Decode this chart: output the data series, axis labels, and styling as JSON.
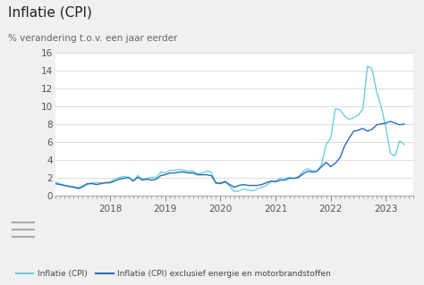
{
  "title": "Inflatie (CPI)",
  "subtitle": "% verandering t.o.v. een jaar eerder",
  "ylim": [
    0,
    16
  ],
  "yticks": [
    0,
    2,
    4,
    6,
    8,
    10,
    12,
    14,
    16
  ],
  "legend_labels": [
    "Inflatie (CPI)",
    "Inflatie (CPI) exclusief energie en motorbrandstoffen"
  ],
  "line1_color": "#6ECFE0",
  "line2_color": "#2B6CB8",
  "background_color": "#f0f0f0",
  "plot_bg": "#ffffff",
  "title_fontsize": 11,
  "subtitle_fontsize": 7.5,
  "tick_fontsize": 7.5,
  "xlim_start": 2017.0,
  "xlim_end": 2023.5,
  "t": [
    2017.0,
    2017.083,
    2017.167,
    2017.25,
    2017.333,
    2017.417,
    2017.5,
    2017.583,
    2017.667,
    2017.75,
    2017.833,
    2017.917,
    2018.0,
    2018.083,
    2018.167,
    2018.25,
    2018.333,
    2018.417,
    2018.5,
    2018.583,
    2018.667,
    2018.75,
    2018.833,
    2018.917,
    2019.0,
    2019.083,
    2019.167,
    2019.25,
    2019.333,
    2019.417,
    2019.5,
    2019.583,
    2019.667,
    2019.75,
    2019.833,
    2019.917,
    2020.0,
    2020.083,
    2020.167,
    2020.25,
    2020.333,
    2020.417,
    2020.5,
    2020.583,
    2020.667,
    2020.75,
    2020.833,
    2020.917,
    2021.0,
    2021.083,
    2021.167,
    2021.25,
    2021.333,
    2021.417,
    2021.5,
    2021.583,
    2021.667,
    2021.75,
    2021.833,
    2021.917,
    2022.0,
    2022.083,
    2022.167,
    2022.25,
    2022.333,
    2022.417,
    2022.5,
    2022.583,
    2022.667,
    2022.75,
    2022.833,
    2022.917,
    2023.0,
    2023.083,
    2023.167,
    2023.25,
    2023.333
  ],
  "line1": [
    1.5,
    1.3,
    1.1,
    1.0,
    1.0,
    0.7,
    0.9,
    1.2,
    1.4,
    1.4,
    1.4,
    1.4,
    1.5,
    1.8,
    2.0,
    2.1,
    2.0,
    1.6,
    2.2,
    1.8,
    1.9,
    2.0,
    2.0,
    2.6,
    2.5,
    2.8,
    2.8,
    2.9,
    2.8,
    2.7,
    2.7,
    2.4,
    2.5,
    2.7,
    2.6,
    1.3,
    1.4,
    1.6,
    1.0,
    0.4,
    0.5,
    0.7,
    0.6,
    0.5,
    0.7,
    0.9,
    1.1,
    1.5,
    1.6,
    1.9,
    1.9,
    2.0,
    1.9,
    2.1,
    2.7,
    3.0,
    2.7,
    2.7,
    3.4,
    5.7,
    6.4,
    9.7,
    9.6,
    8.9,
    8.5,
    8.7,
    9.0,
    9.7,
    14.5,
    14.2,
    11.6,
    9.9,
    7.6,
    4.7,
    4.4,
    6.1,
    5.7
  ],
  "line2": [
    1.3,
    1.2,
    1.1,
    1.0,
    0.9,
    0.8,
    1.0,
    1.3,
    1.3,
    1.2,
    1.3,
    1.4,
    1.4,
    1.6,
    1.8,
    1.9,
    2.0,
    1.6,
    2.0,
    1.7,
    1.8,
    1.7,
    1.8,
    2.2,
    2.3,
    2.5,
    2.5,
    2.6,
    2.6,
    2.5,
    2.5,
    2.3,
    2.3,
    2.3,
    2.2,
    1.4,
    1.3,
    1.5,
    1.2,
    0.9,
    1.1,
    1.2,
    1.1,
    1.1,
    1.1,
    1.2,
    1.4,
    1.6,
    1.5,
    1.7,
    1.7,
    1.9,
    1.9,
    2.0,
    2.4,
    2.7,
    2.6,
    2.7,
    3.2,
    3.7,
    3.2,
    3.6,
    4.2,
    5.5,
    6.4,
    7.2,
    7.3,
    7.5,
    7.2,
    7.4,
    7.9,
    8.0,
    8.1,
    8.3,
    8.1,
    7.9,
    8.0
  ]
}
